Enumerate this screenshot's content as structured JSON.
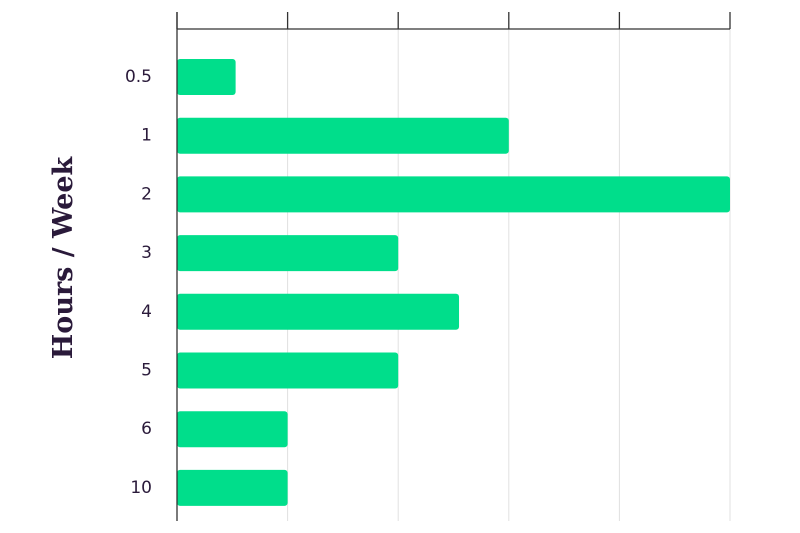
{
  "chart_data": {
    "type": "bar",
    "orientation": "horizontal",
    "title": "",
    "xlabel": "",
    "ylabel": "Hours / Week",
    "categories": [
      "0.5",
      "1",
      "2",
      "3",
      "4",
      "5",
      "6",
      "10"
    ],
    "values": [
      0.53,
      3.0,
      5.0,
      2.0,
      2.55,
      2.0,
      1.0,
      1.0
    ],
    "xlim": [
      0,
      5
    ],
    "x_tick_labels_shown": false,
    "grid": true,
    "bar_color": "#00de8b",
    "text_color": "#2a1a3a",
    "grid_color": "#e0e0e0",
    "axis_color": "#333333"
  }
}
